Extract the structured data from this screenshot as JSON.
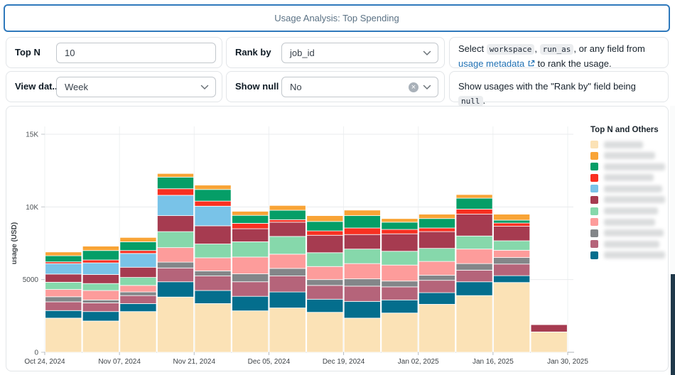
{
  "title": "Usage Analysis: Top Spending",
  "filters": {
    "top_n": {
      "label": "Top N",
      "value": "10"
    },
    "rank_by": {
      "label": "Rank by",
      "value": "job_id"
    },
    "view_data_by": {
      "label": "View dat...",
      "value": "Week"
    },
    "show_null": {
      "label": "Show null",
      "value": "No"
    }
  },
  "help_rank": {
    "t1": "Select",
    "c1": "workspace",
    "t2": ",",
    "c2": "run_as",
    "t3": ", or any field from",
    "link": "usage metadata",
    "t4": "to rank the usage."
  },
  "help_null": {
    "t1": "Show usages with the \"Rank by\" field being",
    "c1": "null",
    "t2": "."
  },
  "chart_data": {
    "type": "bar",
    "stacked": true,
    "ylabel": "usage (USD)",
    "ylim": [
      0,
      15000
    ],
    "grid": true,
    "y_ticks": [
      {
        "value": 0,
        "label": "0"
      },
      {
        "value": 5000,
        "label": "5000"
      },
      {
        "value": 10000,
        "label": "10K"
      },
      {
        "value": 15000,
        "label": "15K"
      }
    ],
    "x_tick_labels": [
      "Oct 24, 2024",
      "Nov 07, 2024",
      "Nov 21, 2024",
      "Dec 05, 2024",
      "Dec 19, 2024",
      "Jan 02, 2025",
      "Jan 16, 2025",
      "Jan 30, 2025"
    ],
    "categories": [
      "Oct 24",
      "Oct 31",
      "Nov 07",
      "Nov 14",
      "Nov 21",
      "Nov 28",
      "Dec 05",
      "Dec 12",
      "Dec 19",
      "Dec 26",
      "Jan 02",
      "Jan 09",
      "Jan 16",
      "Jan 23"
    ],
    "series_note": "stack order bottom-to-top; legend labels are blurred in the source screenshot",
    "series": [
      {
        "name": "(blurred)",
        "color": "#FBE2B6",
        "values": [
          2350,
          2150,
          2800,
          3800,
          3350,
          2850,
          3050,
          2750,
          2350,
          2700,
          3300,
          3900,
          4800,
          1400
        ]
      },
      {
        "name": "(blurred)",
        "color": "#046E8D",
        "values": [
          520,
          650,
          550,
          1050,
          900,
          1000,
          1100,
          900,
          1150,
          900,
          800,
          950,
          470,
          0
        ]
      },
      {
        "name": "(blurred)",
        "color": "#B5647A",
        "values": [
          600,
          600,
          550,
          950,
          1000,
          1000,
          1100,
          950,
          1050,
          900,
          850,
          800,
          800,
          0
        ]
      },
      {
        "name": "(blurred)",
        "color": "#838689",
        "values": [
          350,
          200,
          250,
          400,
          350,
          550,
          520,
          400,
          500,
          400,
          350,
          450,
          450,
          0
        ]
      },
      {
        "name": "(blurred)",
        "color": "#FD9C9B",
        "values": [
          500,
          650,
          450,
          1000,
          900,
          1150,
          980,
          900,
          1050,
          1100,
          950,
          1000,
          500,
          0
        ]
      },
      {
        "name": "(blurred)",
        "color": "#86D8AB",
        "values": [
          500,
          480,
          550,
          1100,
          950,
          1050,
          1220,
          950,
          1000,
          950,
          900,
          900,
          650,
          0
        ]
      },
      {
        "name": "(blurred)",
        "color": "#A63B50",
        "values": [
          560,
          620,
          700,
          1100,
          1250,
          900,
          980,
          1200,
          1000,
          1200,
          1150,
          1500,
          1000,
          500
        ]
      },
      {
        "name": "(blurred)",
        "color": "#79C3E8",
        "values": [
          720,
          800,
          950,
          1400,
          1350,
          0,
          0,
          0,
          0,
          0,
          0,
          0,
          0,
          0
        ]
      },
      {
        "name": "(blurred)",
        "color": "#F93021",
        "values": [
          120,
          200,
          200,
          450,
          350,
          370,
          170,
          300,
          450,
          300,
          250,
          350,
          220,
          0
        ]
      },
      {
        "name": "(blurred)",
        "color": "#059E67",
        "values": [
          420,
          650,
          600,
          800,
          800,
          550,
          650,
          650,
          850,
          500,
          650,
          750,
          200,
          0
        ]
      },
      {
        "name": "(blurred)",
        "color": "#F9A436",
        "values": [
          260,
          300,
          300,
          250,
          300,
          280,
          330,
          400,
          380,
          250,
          300,
          250,
          410,
          0
        ]
      }
    ],
    "legend": {
      "title": "Top N and Others",
      "items_blurred": true,
      "order_colors": [
        "#FBE2B6",
        "#F9A436",
        "#059E67",
        "#F93021",
        "#79C3E8",
        "#A63B50",
        "#86D8AB",
        "#FD9C9B",
        "#838689",
        "#B5647A",
        "#046E8D"
      ],
      "blur_widths": [
        55,
        72,
        92,
        70,
        82,
        90,
        76,
        72,
        84,
        78,
        88
      ]
    }
  }
}
